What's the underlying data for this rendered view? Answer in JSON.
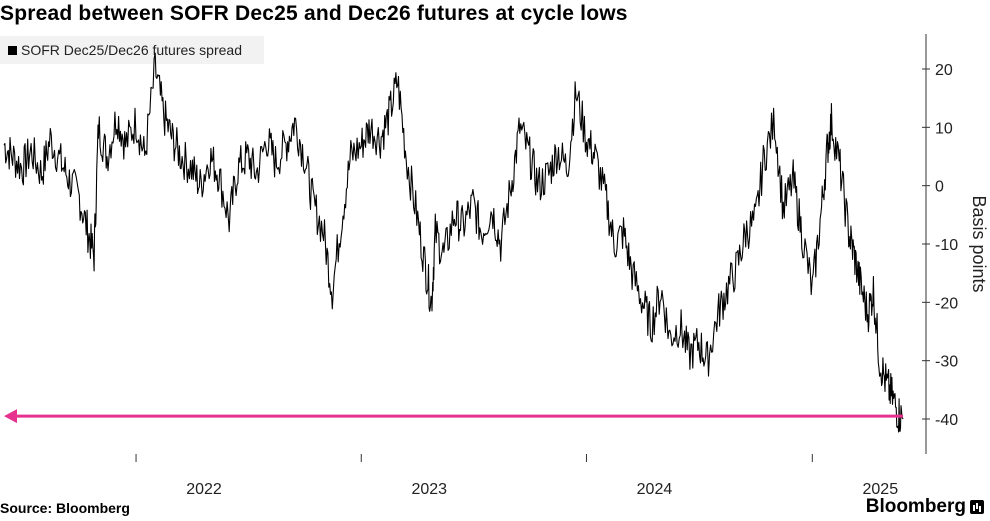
{
  "title": "Spread between SOFR Dec25 and Dec26 futures at cycle lows",
  "legend": {
    "label": "SOFR Dec25/Dec26 futures spread"
  },
  "source": "Source: Bloomberg",
  "brand": "Bloomberg",
  "colors": {
    "series": "#000000",
    "arrow": "#e6318f",
    "axis": "#333333",
    "legend_bg": "#f2f2f2"
  },
  "chart_data": {
    "type": "line",
    "title": "Spread between SOFR Dec25 and Dec26 futures at cycle lows",
    "ylabel": "Basis points",
    "xlabel": "",
    "y_axis_position": "right",
    "legend_placement": "top-left",
    "grid": false,
    "ylim": [
      -46,
      26
    ],
    "xlim": [
      "2021-06-01",
      "2025-04-10"
    ],
    "y_ticks": [
      20,
      10,
      0,
      -10,
      -20,
      -30,
      -40
    ],
    "y_tick_labels": [
      "20",
      "10",
      "0",
      "-10",
      "-20",
      "-30",
      "-40"
    ],
    "x_ticks": [
      "2022-01-01",
      "2023-01-01",
      "2024-01-01",
      "2025-01-01"
    ],
    "x_tick_labels": [
      "2022",
      "2023",
      "2024",
      "2025"
    ],
    "series": [
      {
        "name": "SOFR Dec25/Dec26 futures spread",
        "points": [
          [
            "2021-06-01",
            7
          ],
          [
            "2021-06-15",
            5
          ],
          [
            "2021-07-01",
            3
          ],
          [
            "2021-07-15",
            6
          ],
          [
            "2021-08-01",
            2
          ],
          [
            "2021-08-15",
            8
          ],
          [
            "2021-09-01",
            4
          ],
          [
            "2021-09-15",
            1
          ],
          [
            "2021-10-01",
            -2
          ],
          [
            "2021-10-15",
            -8
          ],
          [
            "2021-10-25",
            -12
          ],
          [
            "2021-11-01",
            10
          ],
          [
            "2021-11-15",
            5
          ],
          [
            "2021-12-01",
            12
          ],
          [
            "2021-12-15",
            7
          ],
          [
            "2022-01-01",
            11
          ],
          [
            "2022-01-15",
            5
          ],
          [
            "2022-02-01",
            20
          ],
          [
            "2022-02-15",
            12
          ],
          [
            "2022-03-01",
            8
          ],
          [
            "2022-03-15",
            5
          ],
          [
            "2022-04-01",
            3
          ],
          [
            "2022-04-15",
            0
          ],
          [
            "2022-05-01",
            5
          ],
          [
            "2022-05-15",
            2
          ],
          [
            "2022-06-01",
            -6
          ],
          [
            "2022-06-15",
            3
          ],
          [
            "2022-07-01",
            5
          ],
          [
            "2022-07-15",
            2
          ],
          [
            "2022-08-01",
            8
          ],
          [
            "2022-08-15",
            4
          ],
          [
            "2022-09-01",
            7
          ],
          [
            "2022-09-15",
            11
          ],
          [
            "2022-10-01",
            5
          ],
          [
            "2022-10-15",
            -3
          ],
          [
            "2022-11-01",
            -8
          ],
          [
            "2022-11-15",
            -18
          ],
          [
            "2022-12-01",
            -5
          ],
          [
            "2022-12-15",
            5
          ],
          [
            "2023-01-01",
            7
          ],
          [
            "2023-01-15",
            10
          ],
          [
            "2023-02-01",
            8
          ],
          [
            "2023-02-15",
            12
          ],
          [
            "2023-03-01",
            18
          ],
          [
            "2023-03-15",
            5
          ],
          [
            "2023-04-01",
            -5
          ],
          [
            "2023-04-15",
            -14
          ],
          [
            "2023-04-25",
            -20
          ],
          [
            "2023-05-01",
            -8
          ],
          [
            "2023-05-15",
            -12
          ],
          [
            "2023-06-01",
            -5
          ],
          [
            "2023-06-15",
            -7
          ],
          [
            "2023-07-01",
            -3
          ],
          [
            "2023-07-15",
            -8
          ],
          [
            "2023-08-01",
            -4
          ],
          [
            "2023-08-15",
            -10
          ],
          [
            "2023-09-01",
            0
          ],
          [
            "2023-09-15",
            10
          ],
          [
            "2023-10-01",
            5
          ],
          [
            "2023-10-15",
            0
          ],
          [
            "2023-11-01",
            2
          ],
          [
            "2023-11-15",
            6
          ],
          [
            "2023-12-01",
            3
          ],
          [
            "2023-12-15",
            16
          ],
          [
            "2024-01-01",
            8
          ],
          [
            "2024-01-15",
            5
          ],
          [
            "2024-02-01",
            -2
          ],
          [
            "2024-02-15",
            -10
          ],
          [
            "2024-03-01",
            -8
          ],
          [
            "2024-03-15",
            -15
          ],
          [
            "2024-04-01",
            -20
          ],
          [
            "2024-04-15",
            -24
          ],
          [
            "2024-05-01",
            -18
          ],
          [
            "2024-05-15",
            -26
          ],
          [
            "2024-06-01",
            -24
          ],
          [
            "2024-06-15",
            -29
          ],
          [
            "2024-07-01",
            -27
          ],
          [
            "2024-07-15",
            -30
          ],
          [
            "2024-08-01",
            -22
          ],
          [
            "2024-08-15",
            -18
          ],
          [
            "2024-09-01",
            -14
          ],
          [
            "2024-09-15",
            -8
          ],
          [
            "2024-10-01",
            -6
          ],
          [
            "2024-10-15",
            5
          ],
          [
            "2024-11-01",
            11
          ],
          [
            "2024-11-15",
            -4
          ],
          [
            "2024-12-01",
            1
          ],
          [
            "2024-12-15",
            -8
          ],
          [
            "2025-01-01",
            -18
          ],
          [
            "2025-01-15",
            -5
          ],
          [
            "2025-01-25",
            6
          ],
          [
            "2025-02-01",
            11
          ],
          [
            "2025-02-15",
            3
          ],
          [
            "2025-03-01",
            -8
          ],
          [
            "2025-03-10",
            -12
          ],
          [
            "2025-03-20",
            -17
          ],
          [
            "2025-04-01",
            -22
          ],
          [
            "2025-04-10",
            -18
          ],
          [
            "2025-04-20",
            -30
          ],
          [
            "2025-05-01",
            -34
          ],
          [
            "2025-05-10",
            -36
          ],
          [
            "2025-05-20",
            -39
          ],
          [
            "2025-05-28",
            -40
          ]
        ]
      }
    ],
    "annotations": [
      {
        "type": "arrow",
        "y": -39.5,
        "direction": "left",
        "color": "#e6318f"
      }
    ]
  }
}
